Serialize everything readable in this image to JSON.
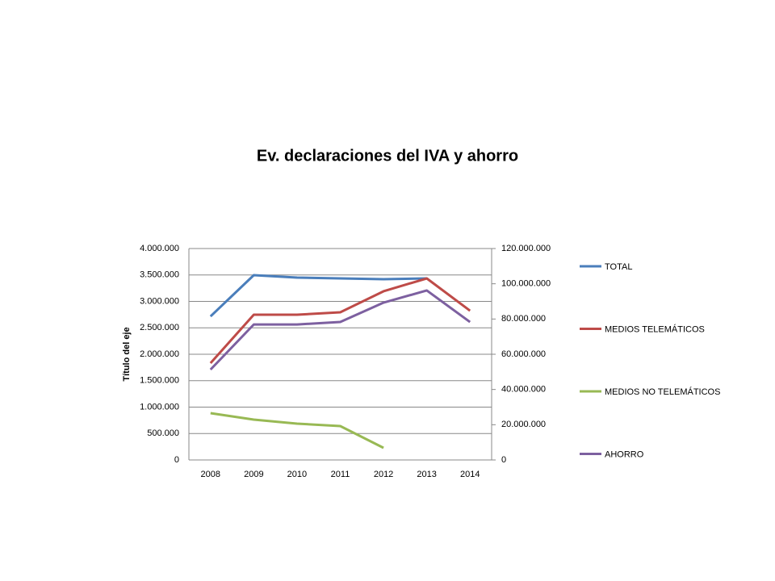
{
  "chart_data": {
    "type": "line",
    "title": "Ev. declaraciones del IVA y ahorro",
    "y_label": "Título del eje",
    "categories": [
      "2008",
      "2009",
      "2010",
      "2011",
      "2012",
      "2013",
      "2014"
    ],
    "series": [
      {
        "name": "TOTAL",
        "color": "#4a7ebb",
        "values": [
          2717000,
          3496000,
          3450000,
          3435000,
          3420000,
          3435000,
          null
        ]
      },
      {
        "name": "MEDIOS TELEMÁTICOS",
        "color": "#be4b48",
        "values": [
          1832000,
          2748000,
          2748000,
          2794000,
          3191000,
          3435000,
          2824000
        ]
      },
      {
        "name": "MEDIOS NO TELEMÁTICOS",
        "color": "#98b954",
        "values": [
          885000,
          763000,
          687000,
          641000,
          229000,
          null,
          null
        ]
      },
      {
        "name": "AHORRO",
        "color": "#7d60a0",
        "axis": "y2",
        "values": [
          51300000,
          76900000,
          76900000,
          78300000,
          89300000,
          96200000,
          78300000
        ]
      }
    ],
    "ylim": [
      0,
      4000000
    ],
    "yticks": [
      0,
      {
        "value": 500000,
        "label": "500.000"
      },
      {
        "value": 1000000,
        "label": "1.000.000"
      },
      {
        "value": 1500000,
        "label": "1.500.000"
      },
      {
        "value": 2000000,
        "label": "2.000.000"
      },
      {
        "value": 2500000,
        "label": "2.500.000"
      },
      {
        "value": 3000000,
        "label": "3.000.000"
      },
      {
        "value": 3500000,
        "label": "3.500.000"
      },
      {
        "value": 4000000,
        "label": "4.000.000"
      }
    ],
    "y2lim": [
      0,
      120000000
    ],
    "y2ticks": [
      0,
      {
        "value": 20000000,
        "label": "20.000.000"
      },
      {
        "value": 40000000,
        "label": "40.000.000"
      },
      {
        "value": 60000000,
        "label": "60.000.000"
      },
      {
        "value": 80000000,
        "label": "80.000.000"
      },
      {
        "value": 100000000,
        "label": "100.000.000"
      },
      {
        "value": 120000000,
        "label": "120.000.000"
      }
    ],
    "grid": true,
    "legend": "right"
  }
}
